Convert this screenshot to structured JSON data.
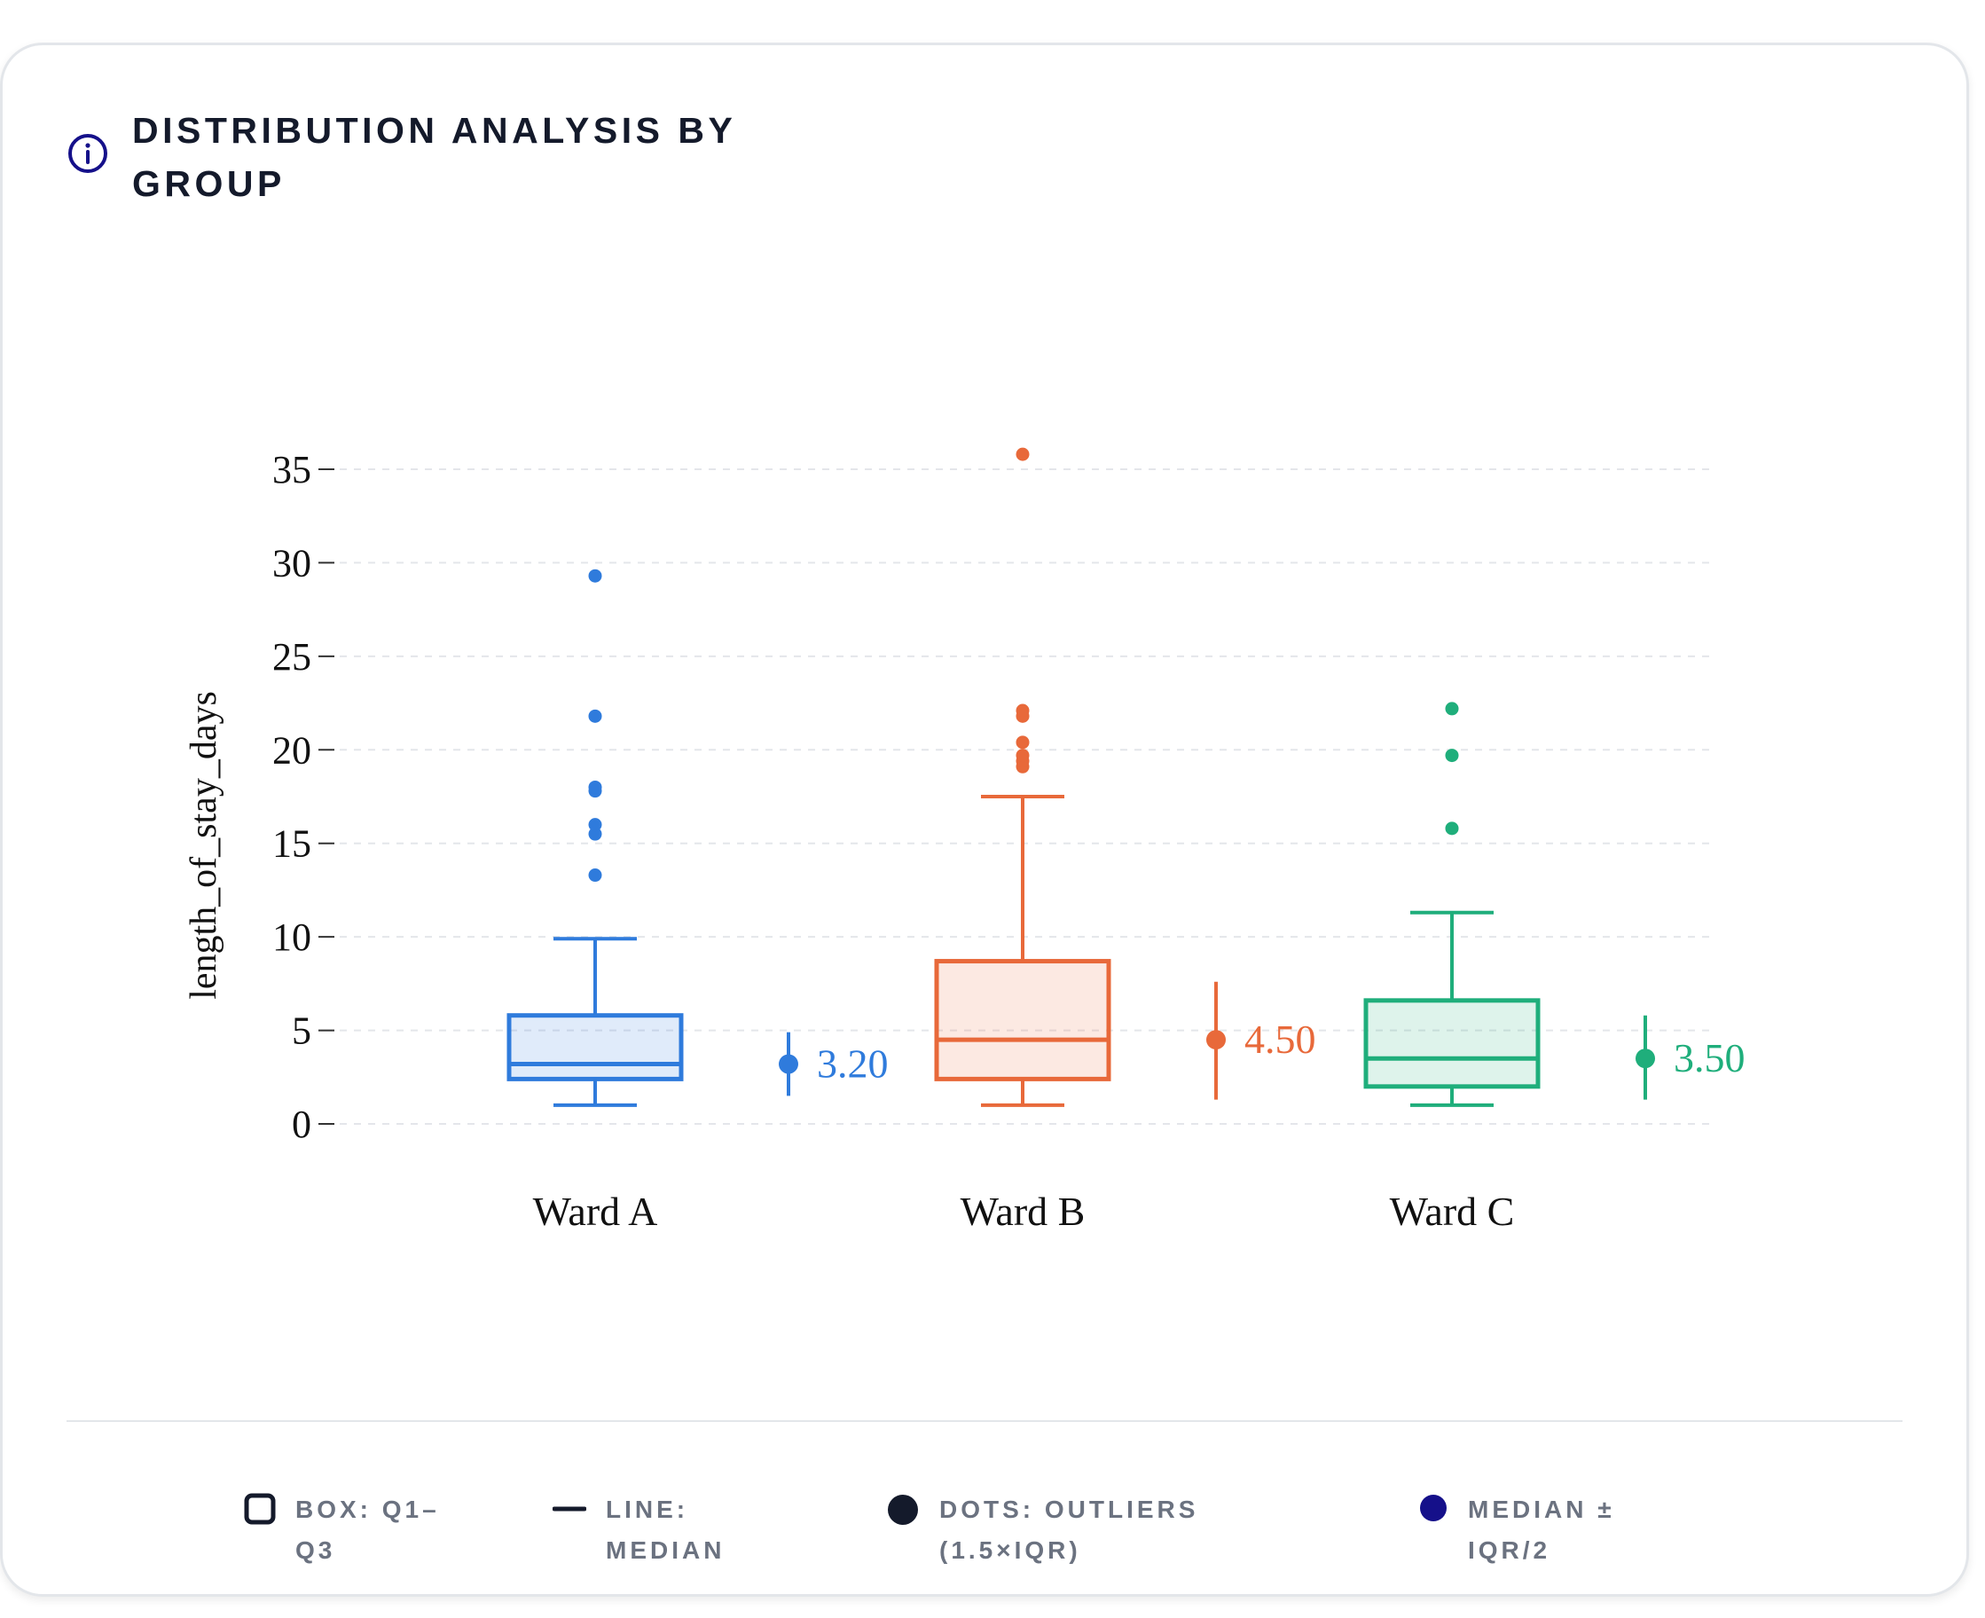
{
  "title": "DISTRIBUTION ANALYSIS BY GROUP",
  "icons": {
    "info": "info-icon"
  },
  "colors": {
    "ward_a": "#2f7bdc",
    "ward_b": "#e8693a",
    "ward_c": "#1fae7b",
    "legend_median": "#15108a",
    "legend_dark": "#141a2b"
  },
  "chart_data": {
    "type": "box",
    "ylabel": "length_of_stay_days",
    "xlabel": "",
    "ylim": [
      0,
      35
    ],
    "yticks": [
      0,
      5,
      10,
      15,
      20,
      25,
      30,
      35
    ],
    "grid": true,
    "categories": [
      "Ward A",
      "Ward B",
      "Ward C"
    ],
    "series": [
      {
        "name": "Ward A",
        "whisker_low": 1.0,
        "q1": 2.4,
        "median": 3.2,
        "q3": 5.8,
        "whisker_high": 9.9,
        "outliers": [
          13.3,
          15.5,
          16.0,
          17.8,
          18.0,
          21.8,
          29.3
        ],
        "median_marker": 3.2,
        "median_label": "3.20",
        "iqr_bar": [
          1.5,
          4.9
        ]
      },
      {
        "name": "Ward B",
        "whisker_low": 1.0,
        "q1": 2.4,
        "median": 4.5,
        "q3": 8.7,
        "whisker_high": 17.5,
        "outliers": [
          19.1,
          19.4,
          19.7,
          20.4,
          21.8,
          22.1,
          35.8
        ],
        "median_marker": 4.5,
        "median_label": "4.50",
        "iqr_bar": [
          1.3,
          7.6
        ]
      },
      {
        "name": "Ward C",
        "whisker_low": 1.0,
        "q1": 2.0,
        "median": 3.5,
        "q3": 6.6,
        "whisker_high": 11.3,
        "outliers": [
          15.8,
          19.7,
          22.2
        ],
        "median_marker": 3.5,
        "median_label": "3.50",
        "iqr_bar": [
          1.3,
          5.8
        ]
      }
    ]
  },
  "legend": [
    {
      "icon": "box-swatch-icon",
      "label": "BOX: Q1–Q3"
    },
    {
      "icon": "line-swatch-icon",
      "label": "LINE: MEDIAN"
    },
    {
      "icon": "dot-swatch-icon",
      "label": "DOTS: OUTLIERS (1.5×IQR)"
    },
    {
      "icon": "median-dot-swatch-icon",
      "label": "MEDIAN ± IQR/2"
    }
  ]
}
